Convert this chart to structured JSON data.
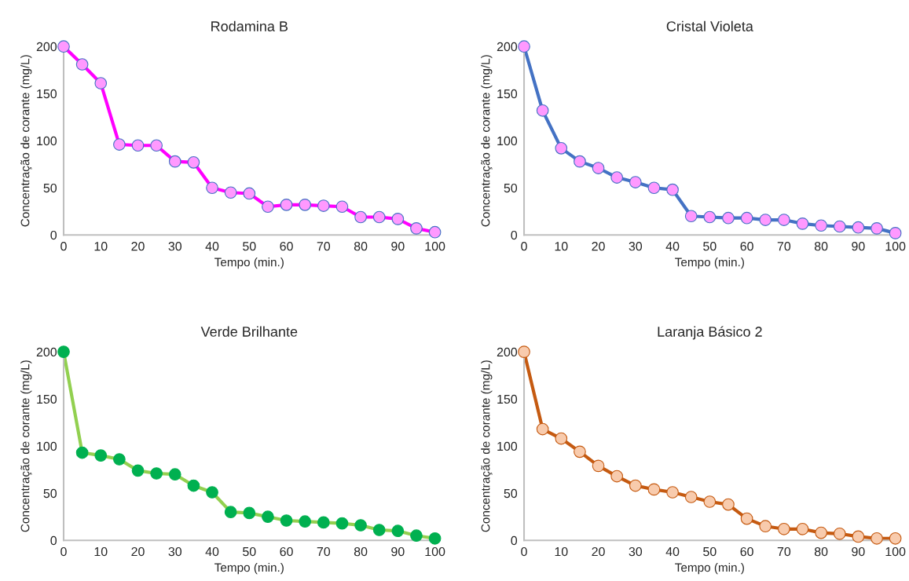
{
  "chart_data": [
    {
      "type": "line",
      "title": "Rodamina B",
      "xlabel": "Tempo (min.)",
      "ylabel": "Concentração de corante (mg/L)",
      "x": [
        0,
        5,
        10,
        15,
        20,
        25,
        30,
        35,
        40,
        45,
        50,
        55,
        60,
        65,
        70,
        75,
        80,
        85,
        90,
        95,
        100
      ],
      "xlim": [
        0,
        100
      ],
      "xticks": [
        0,
        10,
        20,
        30,
        40,
        50,
        60,
        70,
        80,
        90,
        100
      ],
      "ylim": [
        0,
        200
      ],
      "yticks": [
        0,
        50,
        100,
        150,
        200
      ],
      "grid": false,
      "marker": "circle",
      "line_style": "solid",
      "series": [
        {
          "color": "#ff00ff",
          "colors": [
            "#ff99ff",
            "#ff99ff",
            "#ff99ff",
            "#ff99ff",
            "#ff99ff",
            "#ff99ff",
            "#ff99ff",
            "#ff99ff",
            "#ff99ff",
            "#ff99ff",
            "#ff99ff",
            "#ff99ff",
            "#ff99ff",
            "#ff99ff",
            "#ff99ff",
            "#ff99ff",
            "#ff99ff",
            "#ff99ff",
            "#ff99ff",
            "#ff99ff",
            "#ff99ff"
          ],
          "values": [
            200,
            181,
            161,
            96,
            95,
            95,
            78,
            77,
            50,
            45,
            44,
            30,
            32,
            32,
            31,
            30,
            19,
            19,
            17,
            7,
            3
          ]
        }
      ]
    },
    {
      "type": "line",
      "title": "Cristal Violeta",
      "xlabel": "Tempo (min.)",
      "ylabel": "Concentração de corante (mg/L)",
      "x": [
        0,
        5,
        10,
        15,
        20,
        25,
        30,
        35,
        40,
        45,
        50,
        55,
        60,
        65,
        70,
        75,
        80,
        85,
        90,
        95,
        100
      ],
      "xlim": [
        0,
        100
      ],
      "xticks": [
        0,
        10,
        20,
        30,
        40,
        50,
        60,
        70,
        80,
        90,
        100
      ],
      "ylim": [
        0,
        200
      ],
      "yticks": [
        0,
        50,
        100,
        150,
        200
      ],
      "grid": false,
      "marker": "circle",
      "line_style": "solid",
      "series": [
        {
          "color": "#4472c4",
          "colors": [
            "#ff99ff",
            "#ff99ff",
            "#ff99ff",
            "#ff99ff",
            "#ff99ff",
            "#ff99ff",
            "#ff99ff",
            "#ff99ff",
            "#ff99ff",
            "#ff99ff",
            "#ff99ff",
            "#ff99ff",
            "#ff99ff",
            "#ff99ff",
            "#ff99ff",
            "#ff99ff",
            "#ff99ff",
            "#ff99ff",
            "#ff99ff",
            "#ff99ff",
            "#ff99ff"
          ],
          "values": [
            200,
            132,
            92,
            78,
            71,
            61,
            56,
            50,
            48,
            20,
            19,
            18,
            18,
            16,
            16,
            12,
            10,
            9,
            8,
            7,
            2
          ]
        }
      ]
    },
    {
      "type": "line",
      "title": "Verde Brilhante",
      "xlabel": "Tempo (min.)",
      "ylabel": "Concentração de corante (mg/L)",
      "x": [
        0,
        5,
        10,
        15,
        20,
        25,
        30,
        35,
        40,
        45,
        50,
        55,
        60,
        65,
        70,
        75,
        80,
        85,
        90,
        95,
        100
      ],
      "xlim": [
        0,
        100
      ],
      "xticks": [
        0,
        10,
        20,
        30,
        40,
        50,
        60,
        70,
        80,
        90,
        100
      ],
      "ylim": [
        0,
        200
      ],
      "yticks": [
        0,
        50,
        100,
        150,
        200
      ],
      "grid": false,
      "marker": "circle",
      "line_style": "solid",
      "series": [
        {
          "color": "#92d050",
          "colors": [
            "#00b050",
            "#00b050",
            "#00b050",
            "#00b050",
            "#00b050",
            "#00b050",
            "#00b050",
            "#00b050",
            "#00b050",
            "#00b050",
            "#00b050",
            "#00b050",
            "#00b050",
            "#00b050",
            "#00b050",
            "#00b050",
            "#00b050",
            "#00b050",
            "#00b050",
            "#00b050",
            "#00b050"
          ],
          "values": [
            200,
            93,
            90,
            86,
            74,
            71,
            70,
            58,
            51,
            30,
            29,
            25,
            21,
            20,
            19,
            18,
            16,
            11,
            10,
            5,
            2
          ]
        }
      ]
    },
    {
      "type": "line",
      "title": "Laranja Básico 2",
      "xlabel": "Tempo (min.)",
      "ylabel": "Concentração de corante (mg/L)",
      "x": [
        0,
        5,
        10,
        15,
        20,
        25,
        30,
        35,
        40,
        45,
        50,
        55,
        60,
        65,
        70,
        75,
        80,
        85,
        90,
        95,
        100
      ],
      "xlim": [
        0,
        100
      ],
      "xticks": [
        0,
        10,
        20,
        30,
        40,
        50,
        60,
        70,
        80,
        90,
        100
      ],
      "ylim": [
        0,
        200
      ],
      "yticks": [
        0,
        50,
        100,
        150,
        200
      ],
      "grid": false,
      "marker": "circle",
      "line_style": "solid",
      "series": [
        {
          "color": "#c55a11",
          "colors": [
            "#f8cbad",
            "#f8cbad",
            "#f8cbad",
            "#f8cbad",
            "#f8cbad",
            "#f8cbad",
            "#f8cbad",
            "#f8cbad",
            "#f8cbad",
            "#f8cbad",
            "#f8cbad",
            "#f8cbad",
            "#f8cbad",
            "#f8cbad",
            "#f8cbad",
            "#f8cbad",
            "#f8cbad",
            "#f8cbad",
            "#f8cbad",
            "#f8cbad",
            "#f8cbad"
          ],
          "values": [
            200,
            118,
            108,
            94,
            79,
            68,
            58,
            54,
            51,
            46,
            41,
            38,
            23,
            15,
            12,
            12,
            8,
            7,
            4,
            2,
            2
          ]
        }
      ]
    }
  ]
}
